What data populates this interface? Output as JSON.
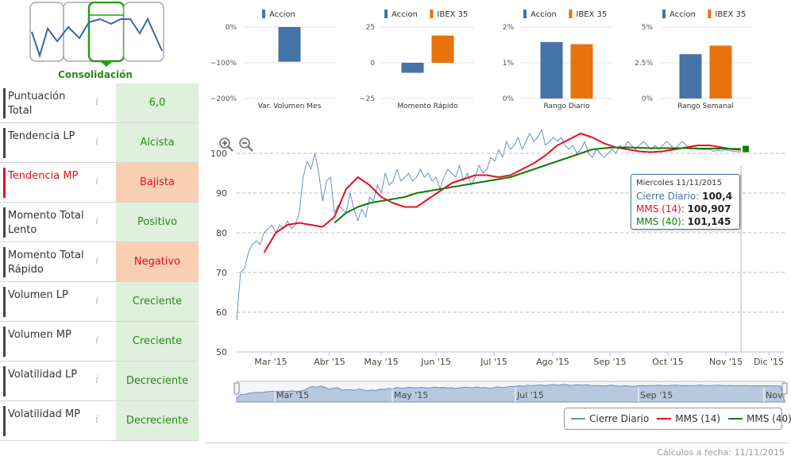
{
  "pattern": {
    "label": "Consolidación"
  },
  "indicators": [
    {
      "label": "Puntuación Total",
      "value": "6,0",
      "status": "green",
      "alert": false
    },
    {
      "label": "Tendencia LP",
      "value": "Alcista",
      "status": "green",
      "alert": false
    },
    {
      "label": "Tendencia MP",
      "value": "Bajista",
      "status": "red",
      "alert": true
    },
    {
      "label": "Momento Total Lento",
      "value": "Positivo",
      "status": "green",
      "alert": false
    },
    {
      "label": "Momento Total Rápido",
      "value": "Negativo",
      "status": "red",
      "alert": false
    },
    {
      "label": "Volumen LP",
      "value": "Creciente",
      "status": "green",
      "alert": false
    },
    {
      "label": "Volumen MP",
      "value": "Creciente",
      "status": "green",
      "alert": false
    },
    {
      "label": "Volatilidad LP",
      "value": "Decreciente",
      "status": "green",
      "alert": false
    },
    {
      "label": "Volatilidad MP",
      "value": "Decreciente",
      "status": "green",
      "alert": false
    }
  ],
  "colors": {
    "accion": "#4572a7",
    "ibex": "#e8720c",
    "cierre": "#6b8fc4",
    "mms14": "#e8101e",
    "mms40": "#137a0a"
  },
  "chart_data": [
    {
      "type": "bar",
      "xlabel": "Var. Volumen Mes",
      "legend": [
        "Accion"
      ],
      "yticks": [
        "0%",
        "−100%",
        "−200%"
      ],
      "ylim": [
        -200,
        0
      ],
      "series": [
        {
          "name": "Accion",
          "values": [
            -97
          ]
        }
      ]
    },
    {
      "type": "bar",
      "xlabel": "Momento Rápido",
      "legend": [
        "Accion",
        "IBEX 35"
      ],
      "yticks": [
        "25",
        "0",
        "−25"
      ],
      "ylim": [
        -25,
        25
      ],
      "series": [
        {
          "name": "Accion",
          "values": [
            -7
          ]
        },
        {
          "name": "IBEX 35",
          "values": [
            19
          ]
        }
      ]
    },
    {
      "type": "bar",
      "xlabel": "Rango Diario",
      "legend": [
        "Accion",
        "IBEX 35"
      ],
      "yticks": [
        "2%",
        "1%",
        "0%"
      ],
      "ylim": [
        0,
        2
      ],
      "series": [
        {
          "name": "Accion",
          "values": [
            1.58
          ]
        },
        {
          "name": "IBEX 35",
          "values": [
            1.52
          ]
        }
      ]
    },
    {
      "type": "bar",
      "xlabel": "Rango Semanal",
      "legend": [
        "Accion",
        "IBEX 35"
      ],
      "yticks": [
        "5%",
        "2.5%",
        "0%"
      ],
      "ylim": [
        0,
        5
      ],
      "series": [
        {
          "name": "Accion",
          "values": [
            3.1
          ]
        },
        {
          "name": "IBEX 35",
          "values": [
            3.7
          ]
        }
      ]
    },
    {
      "type": "line",
      "title": "",
      "yticks": [
        100,
        90,
        80,
        70,
        60,
        50
      ],
      "ylim": [
        50,
        103
      ],
      "xticks": [
        "Mar '15",
        "Abr '15",
        "May '15",
        "Jun '15",
        "Jul '15",
        "Ago '15",
        "Sep '15",
        "Oct '15",
        "Nov '15",
        "Dic '15"
      ],
      "series": [
        {
          "name": "Cierre Diario",
          "x": [
            0,
            2,
            4,
            6,
            8,
            10,
            12,
            14,
            16,
            18,
            20,
            22,
            24,
            26,
            28,
            30,
            32,
            34,
            36,
            38,
            40,
            42,
            44,
            46,
            48,
            50,
            52,
            54,
            56,
            58,
            60,
            62,
            64,
            66,
            68,
            70,
            72,
            74,
            76,
            78,
            80,
            82,
            84,
            86,
            88,
            90,
            92,
            94,
            96,
            98,
            100,
            102,
            104,
            106,
            108,
            110,
            112,
            114,
            116,
            118,
            120,
            122,
            124,
            126,
            128,
            130,
            132,
            134,
            136,
            138,
            140,
            142,
            144,
            146,
            148,
            150,
            152,
            154,
            156,
            158,
            160,
            162,
            164,
            166,
            168,
            170,
            172,
            174,
            176,
            178,
            180,
            182,
            184,
            186,
            188,
            190,
            192,
            194,
            196,
            198,
            200,
            202,
            204,
            206,
            208,
            210,
            212,
            214,
            216,
            218,
            220,
            222,
            224,
            226,
            228,
            230,
            232,
            234,
            236,
            238,
            240,
            242,
            244,
            246,
            248,
            250,
            252,
            254,
            256,
            258
          ],
          "values": [
            58,
            70,
            71,
            75,
            77,
            78,
            77,
            80,
            81,
            82,
            80,
            82,
            81,
            83,
            81,
            82,
            85,
            94,
            98,
            96,
            100,
            95,
            88,
            93,
            94,
            85,
            87,
            86,
            85,
            90,
            86,
            83,
            86,
            84,
            89,
            88,
            92,
            90,
            95,
            92,
            93,
            96,
            93,
            94,
            95,
            93,
            94,
            96,
            94,
            95,
            93,
            94,
            91,
            94,
            96,
            95,
            94,
            97,
            93,
            95,
            92,
            94,
            97,
            95,
            96,
            99,
            98,
            101,
            99,
            103,
            101,
            102,
            104,
            101,
            103,
            105,
            103,
            104,
            106,
            102,
            103,
            104,
            103,
            104,
            102,
            101,
            102,
            100,
            101,
            103,
            100,
            99,
            101,
            100,
            99,
            100,
            101,
            100,
            102,
            101,
            103,
            102,
            101,
            102,
            103,
            102,
            101,
            102,
            101,
            102,
            103,
            102,
            101,
            102,
            103,
            102,
            101,
            102,
            101,
            101,
            101,
            101,
            100.5,
            100.8,
            100.6,
            100.9,
            100.7,
            100.5,
            100.4,
            100.4
          ]
        },
        {
          "name": "MMS (14)",
          "x": [
            14,
            20,
            26,
            32,
            38,
            44,
            50,
            56,
            62,
            68,
            74,
            80,
            86,
            92,
            98,
            104,
            110,
            116,
            122,
            128,
            134,
            140,
            146,
            152,
            158,
            164,
            170,
            176,
            182,
            188,
            194,
            200,
            206,
            212,
            218,
            224,
            230,
            236,
            242,
            248,
            254,
            258
          ],
          "values": [
            75,
            80,
            82,
            82.5,
            82,
            81.5,
            84,
            91,
            94,
            92,
            89,
            87.5,
            86.5,
            86.5,
            88.5,
            90.5,
            92.5,
            93.5,
            94.5,
            94.5,
            94,
            94.5,
            96,
            97.5,
            99.5,
            102,
            103.5,
            105,
            104,
            102.5,
            101.5,
            101,
            100.5,
            100.3,
            100.5,
            101,
            101.5,
            102,
            102,
            101.5,
            101,
            100.9
          ]
        },
        {
          "name": "MMS (40)",
          "x": [
            50,
            56,
            62,
            68,
            74,
            80,
            86,
            92,
            98,
            104,
            110,
            116,
            122,
            128,
            134,
            140,
            146,
            152,
            158,
            164,
            170,
            176,
            182,
            188,
            194,
            200,
            206,
            212,
            218,
            224,
            230,
            236,
            242,
            248,
            254,
            258
          ],
          "values": [
            82.5,
            85,
            86.5,
            87.5,
            88,
            88.5,
            89,
            90,
            90.5,
            91,
            91.5,
            92,
            92.5,
            93,
            93.5,
            94,
            95,
            96,
            97,
            98,
            99,
            100,
            101,
            101.3,
            101.5,
            101.5,
            101.4,
            101.3,
            101.3,
            101.3,
            101.3,
            101.2,
            101.2,
            101.2,
            101.15,
            101.1
          ]
        }
      ]
    }
  ],
  "navigator": {
    "labels": [
      "Mar '15",
      "May '15",
      "Jul '15",
      "Sep '15",
      "Nov '15"
    ]
  },
  "tooltip": {
    "date": "Miercoles 11/11/2015",
    "cierre_label": "Cierre Diario:",
    "cierre_value": "100,4",
    "mms14_label": "MMS (14):",
    "mms14_value": "100,907",
    "mms40_label": "MMS (40):",
    "mms40_value": "101,145"
  },
  "legend": {
    "cierre": "Cierre Diario",
    "mms14": "MMS (14)",
    "mms40": "MMS (40)"
  },
  "footer": "Cálculos a fecha: 11/11/2015"
}
